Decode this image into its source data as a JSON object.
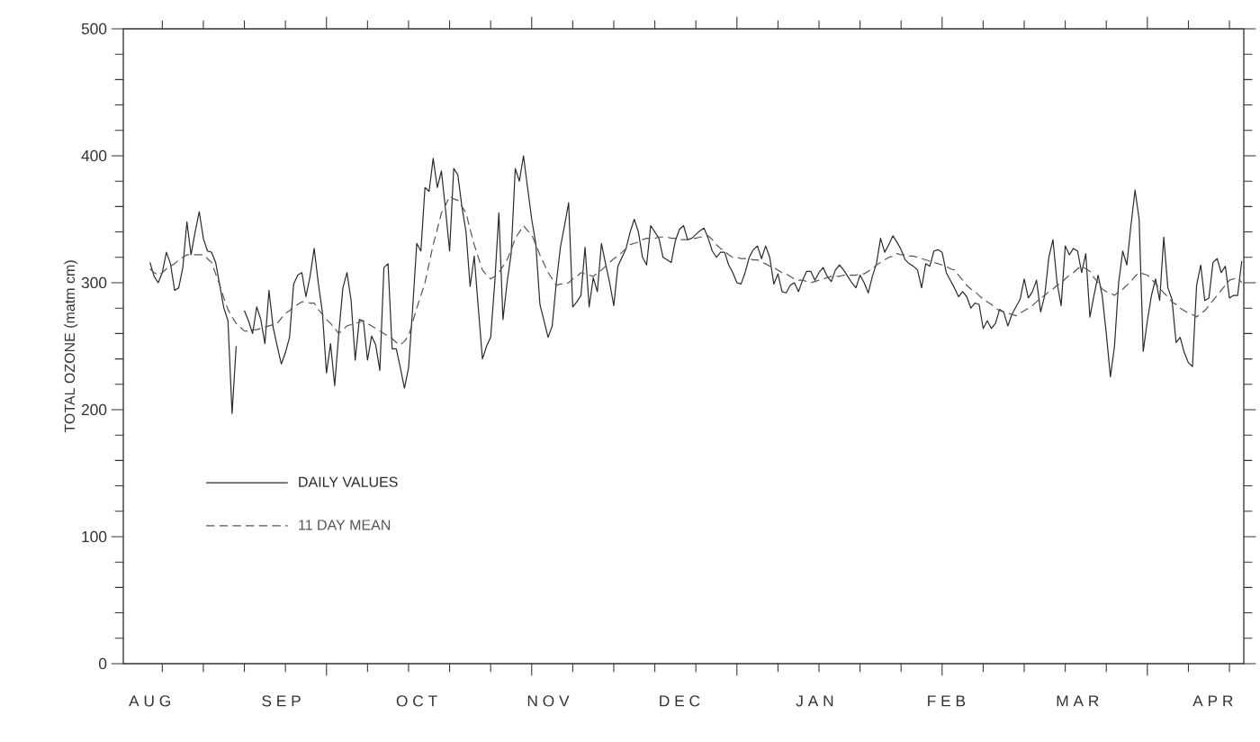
{
  "chart_data": {
    "type": "line",
    "ylabel": "TOTAL OZONE (matm cm)",
    "ylim": [
      0,
      500
    ],
    "yticks": [
      0,
      100,
      200,
      300,
      400,
      500,
      {
        "value": 20,
        "label": null
      },
      {
        "value": 40,
        "label": null
      },
      {
        "value": 60,
        "label": null
      },
      {
        "value": 80,
        "label": null
      },
      {
        "value": 120,
        "label": null
      },
      {
        "value": 140,
        "label": null
      },
      {
        "value": 160,
        "label": null
      },
      {
        "value": 180,
        "label": null
      },
      {
        "value": 220,
        "label": null
      },
      {
        "value": 240,
        "label": null
      },
      {
        "value": 260,
        "label": null
      },
      {
        "value": 280,
        "label": null
      },
      {
        "value": 320,
        "label": null
      },
      {
        "value": 340,
        "label": null
      },
      {
        "value": 360,
        "label": null
      },
      {
        "value": 380,
        "label": null
      },
      {
        "value": 420,
        "label": null
      },
      {
        "value": 440,
        "label": null
      },
      {
        "value": 460,
        "label": null
      },
      {
        "value": 480,
        "label": null
      }
    ],
    "legend": "bottom left",
    "categories": [
      null,
      null,
      null,
      null,
      null,
      null,
      "A U G",
      null,
      null,
      null,
      null,
      null,
      null,
      null,
      null,
      null,
      null,
      null,
      null,
      null,
      null,
      null,
      null,
      null,
      null,
      null,
      null,
      null,
      null,
      null,
      null,
      null,
      null,
      null,
      null,
      null,
      null,
      null,
      "S E P",
      null,
      null,
      null,
      null,
      null,
      null,
      null,
      null,
      null,
      null,
      null,
      null,
      null,
      null,
      null,
      null,
      null,
      null,
      null,
      null,
      null,
      null,
      null,
      null,
      null,
      null,
      null,
      null,
      null,
      null,
      null,
      null,
      "O C T",
      null,
      null,
      null,
      null,
      null,
      null,
      null,
      null,
      null,
      null,
      null,
      null,
      null,
      null,
      null,
      null,
      null,
      null,
      null,
      null,
      null,
      null,
      null,
      null,
      null,
      null,
      null,
      null,
      null,
      null,
      null,
      "N O V",
      null,
      null,
      null,
      null,
      null,
      null,
      null,
      null,
      null,
      null,
      null,
      null,
      null,
      null,
      null,
      null,
      null,
      null,
      null,
      null,
      null,
      null,
      null,
      null,
      null,
      null,
      null,
      null,
      null,
      null,
      null,
      "D E C",
      null,
      null,
      null,
      null,
      null,
      null,
      null,
      null,
      null,
      null,
      null,
      null,
      null,
      null,
      null,
      null,
      null,
      null,
      null,
      null,
      null,
      null,
      null,
      null,
      null,
      null,
      null,
      null,
      null,
      null,
      null,
      null,
      "J A N",
      null,
      null,
      null,
      null,
      null,
      null,
      null,
      null,
      null,
      null,
      null,
      null,
      null,
      null,
      null,
      null,
      null,
      null,
      null,
      null,
      null,
      null,
      null,
      null,
      null,
      null,
      null,
      null,
      null,
      null,
      null,
      "F E B",
      null,
      null,
      null,
      null,
      null,
      null,
      null,
      null,
      null,
      null,
      null,
      null,
      null,
      null,
      null,
      null,
      null,
      null,
      null,
      null,
      null,
      null,
      null,
      null,
      null,
      null,
      null,
      null,
      null,
      null,
      null,
      "M A R",
      null,
      null,
      null,
      null,
      null,
      null,
      null,
      null,
      null,
      null,
      null,
      null,
      null,
      null,
      null,
      null,
      null,
      null,
      null,
      null,
      null,
      null,
      null,
      null,
      null,
      null,
      null,
      null,
      null,
      null,
      null,
      null,
      "A P R",
      null,
      null,
      null,
      null,
      null,
      null,
      null
    ],
    "series": [
      {
        "name": "DAILY VALUES",
        "color": "#2a2a2a",
        "line_style": "solid",
        "values": [
          null,
          null,
          null,
          null,
          null,
          null,
          316,
          305,
          300,
          308,
          324,
          315,
          294,
          296,
          312,
          348,
          322,
          340,
          356,
          335,
          325,
          324,
          316,
          298,
          280,
          270,
          197,
          250,
          null,
          278,
          270,
          260,
          281,
          271,
          252,
          294,
          265,
          250,
          236,
          245,
          257,
          299,
          306,
          308,
          289,
          305,
          327,
          300,
          277,
          229,
          252,
          219,
          260,
          296,
          308,
          286,
          239,
          271,
          270,
          239,
          258,
          251,
          231,
          312,
          315,
          248,
          248,
          233,
          217,
          233,
          280,
          331,
          325,
          375,
          372,
          398,
          375,
          388,
          358,
          325,
          390,
          385,
          360,
          340,
          297,
          321,
          280,
          240,
          250,
          257,
          300,
          355,
          271,
          300,
          323,
          390,
          380,
          400,
          375,
          350,
          331,
          283,
          270,
          257,
          266,
          300,
          328,
          345,
          363,
          281,
          285,
          290,
          328,
          281,
          304,
          293,
          331,
          315,
          300,
          282,
          313,
          320,
          327,
          340,
          350,
          340,
          320,
          314,
          345,
          340,
          335,
          320,
          318,
          316,
          333,
          342,
          345,
          334,
          335,
          338,
          341,
          343,
          335,
          325,
          320,
          324,
          324,
          314,
          308,
          300,
          299,
          308,
          320,
          326,
          329,
          319,
          329,
          320,
          299,
          307,
          293,
          292,
          298,
          300,
          293,
          302,
          309,
          309,
          302,
          308,
          312,
          305,
          301,
          310,
          314,
          310,
          305,
          300,
          296,
          306,
          300,
          292,
          305,
          315,
          335,
          324,
          330,
          337,
          332,
          326,
          318,
          315,
          313,
          310,
          296,
          315,
          313,
          325,
          326,
          324,
          308,
          302,
          296,
          289,
          293,
          289,
          280,
          284,
          283,
          264,
          270,
          264,
          268,
          279,
          277,
          266,
          275,
          281,
          287,
          303,
          288,
          293,
          302,
          277,
          290,
          320,
          334,
          300,
          282,
          329,
          322,
          327,
          325,
          308,
          323,
          273,
          290,
          306,
          290,
          260,
          226,
          250,
          300,
          325,
          314,
          345,
          373,
          350,
          246,
          270,
          290,
          303,
          286,
          336,
          296,
          287,
          253,
          257,
          245,
          237,
          234,
          298,
          314,
          286,
          288,
          316,
          319,
          308,
          313,
          288,
          290,
          290,
          317
        ]
      },
      {
        "name": "11 DAY MEAN",
        "color": "#555555",
        "line_style": "dashed",
        "values": [
          null,
          null,
          null,
          null,
          null,
          null,
          311,
          308,
          306,
          308,
          311,
          313,
          315,
          318,
          320,
          322,
          322,
          322,
          322,
          322,
          319,
          316,
          307,
          298,
          288,
          279,
          273,
          268,
          265,
          262,
          262,
          263,
          263,
          264,
          265,
          266,
          267,
          268,
          272,
          276,
          278,
          281,
          283,
          285,
          285,
          284,
          284,
          279,
          275,
          271,
          268,
          264,
          260,
          263,
          266,
          267,
          268,
          269,
          270,
          268,
          266,
          264,
          262,
          260,
          258,
          256,
          253,
          251,
          254,
          258,
          269,
          280,
          290,
          300,
          315,
          330,
          342,
          355,
          361,
          368,
          366,
          365,
          360,
          355,
          342,
          330,
          320,
          310,
          306,
          303,
          305,
          308,
          313,
          318,
          326,
          335,
          340,
          345,
          341,
          338,
          330,
          322,
          315,
          308,
          303,
          298,
          299,
          299,
          300,
          303,
          305,
          308,
          307,
          306,
          305,
          308,
          310,
          313,
          316,
          319,
          321,
          324,
          327,
          330,
          331,
          332,
          334,
          335,
          335,
          335,
          336,
          336,
          336,
          335,
          335,
          334,
          334,
          334,
          335,
          335,
          336,
          336,
          337,
          334,
          330,
          327,
          325,
          322,
          320,
          320,
          319,
          319,
          319,
          318,
          318,
          316,
          315,
          313,
          312,
          310,
          308,
          307,
          305,
          303,
          302,
          302,
          301,
          300,
          301,
          302,
          303,
          304,
          305,
          305,
          305,
          306,
          306,
          306,
          306,
          307,
          307,
          309,
          311,
          314,
          316,
          318,
          320,
          321,
          323,
          322,
          322,
          321,
          321,
          320,
          319,
          318,
          317,
          316,
          315,
          314,
          313,
          311,
          310,
          306,
          302,
          298,
          295,
          293,
          290,
          287,
          285,
          283,
          280,
          278,
          277,
          276,
          275,
          274,
          276,
          278,
          280,
          282,
          285,
          288,
          290,
          293,
          295,
          298,
          300,
          303,
          306,
          308,
          311,
          313,
          311,
          309,
          304,
          300,
          295,
          293,
          292,
          290,
          293,
          295,
          298,
          301,
          305,
          308,
          307,
          306,
          303,
          299,
          296,
          292,
          289,
          285,
          283,
          280,
          278,
          276,
          275,
          273,
          276,
          278,
          282,
          286,
          290,
          294,
          298,
          302,
          303,
          304,
          300
        ]
      }
    ]
  }
}
